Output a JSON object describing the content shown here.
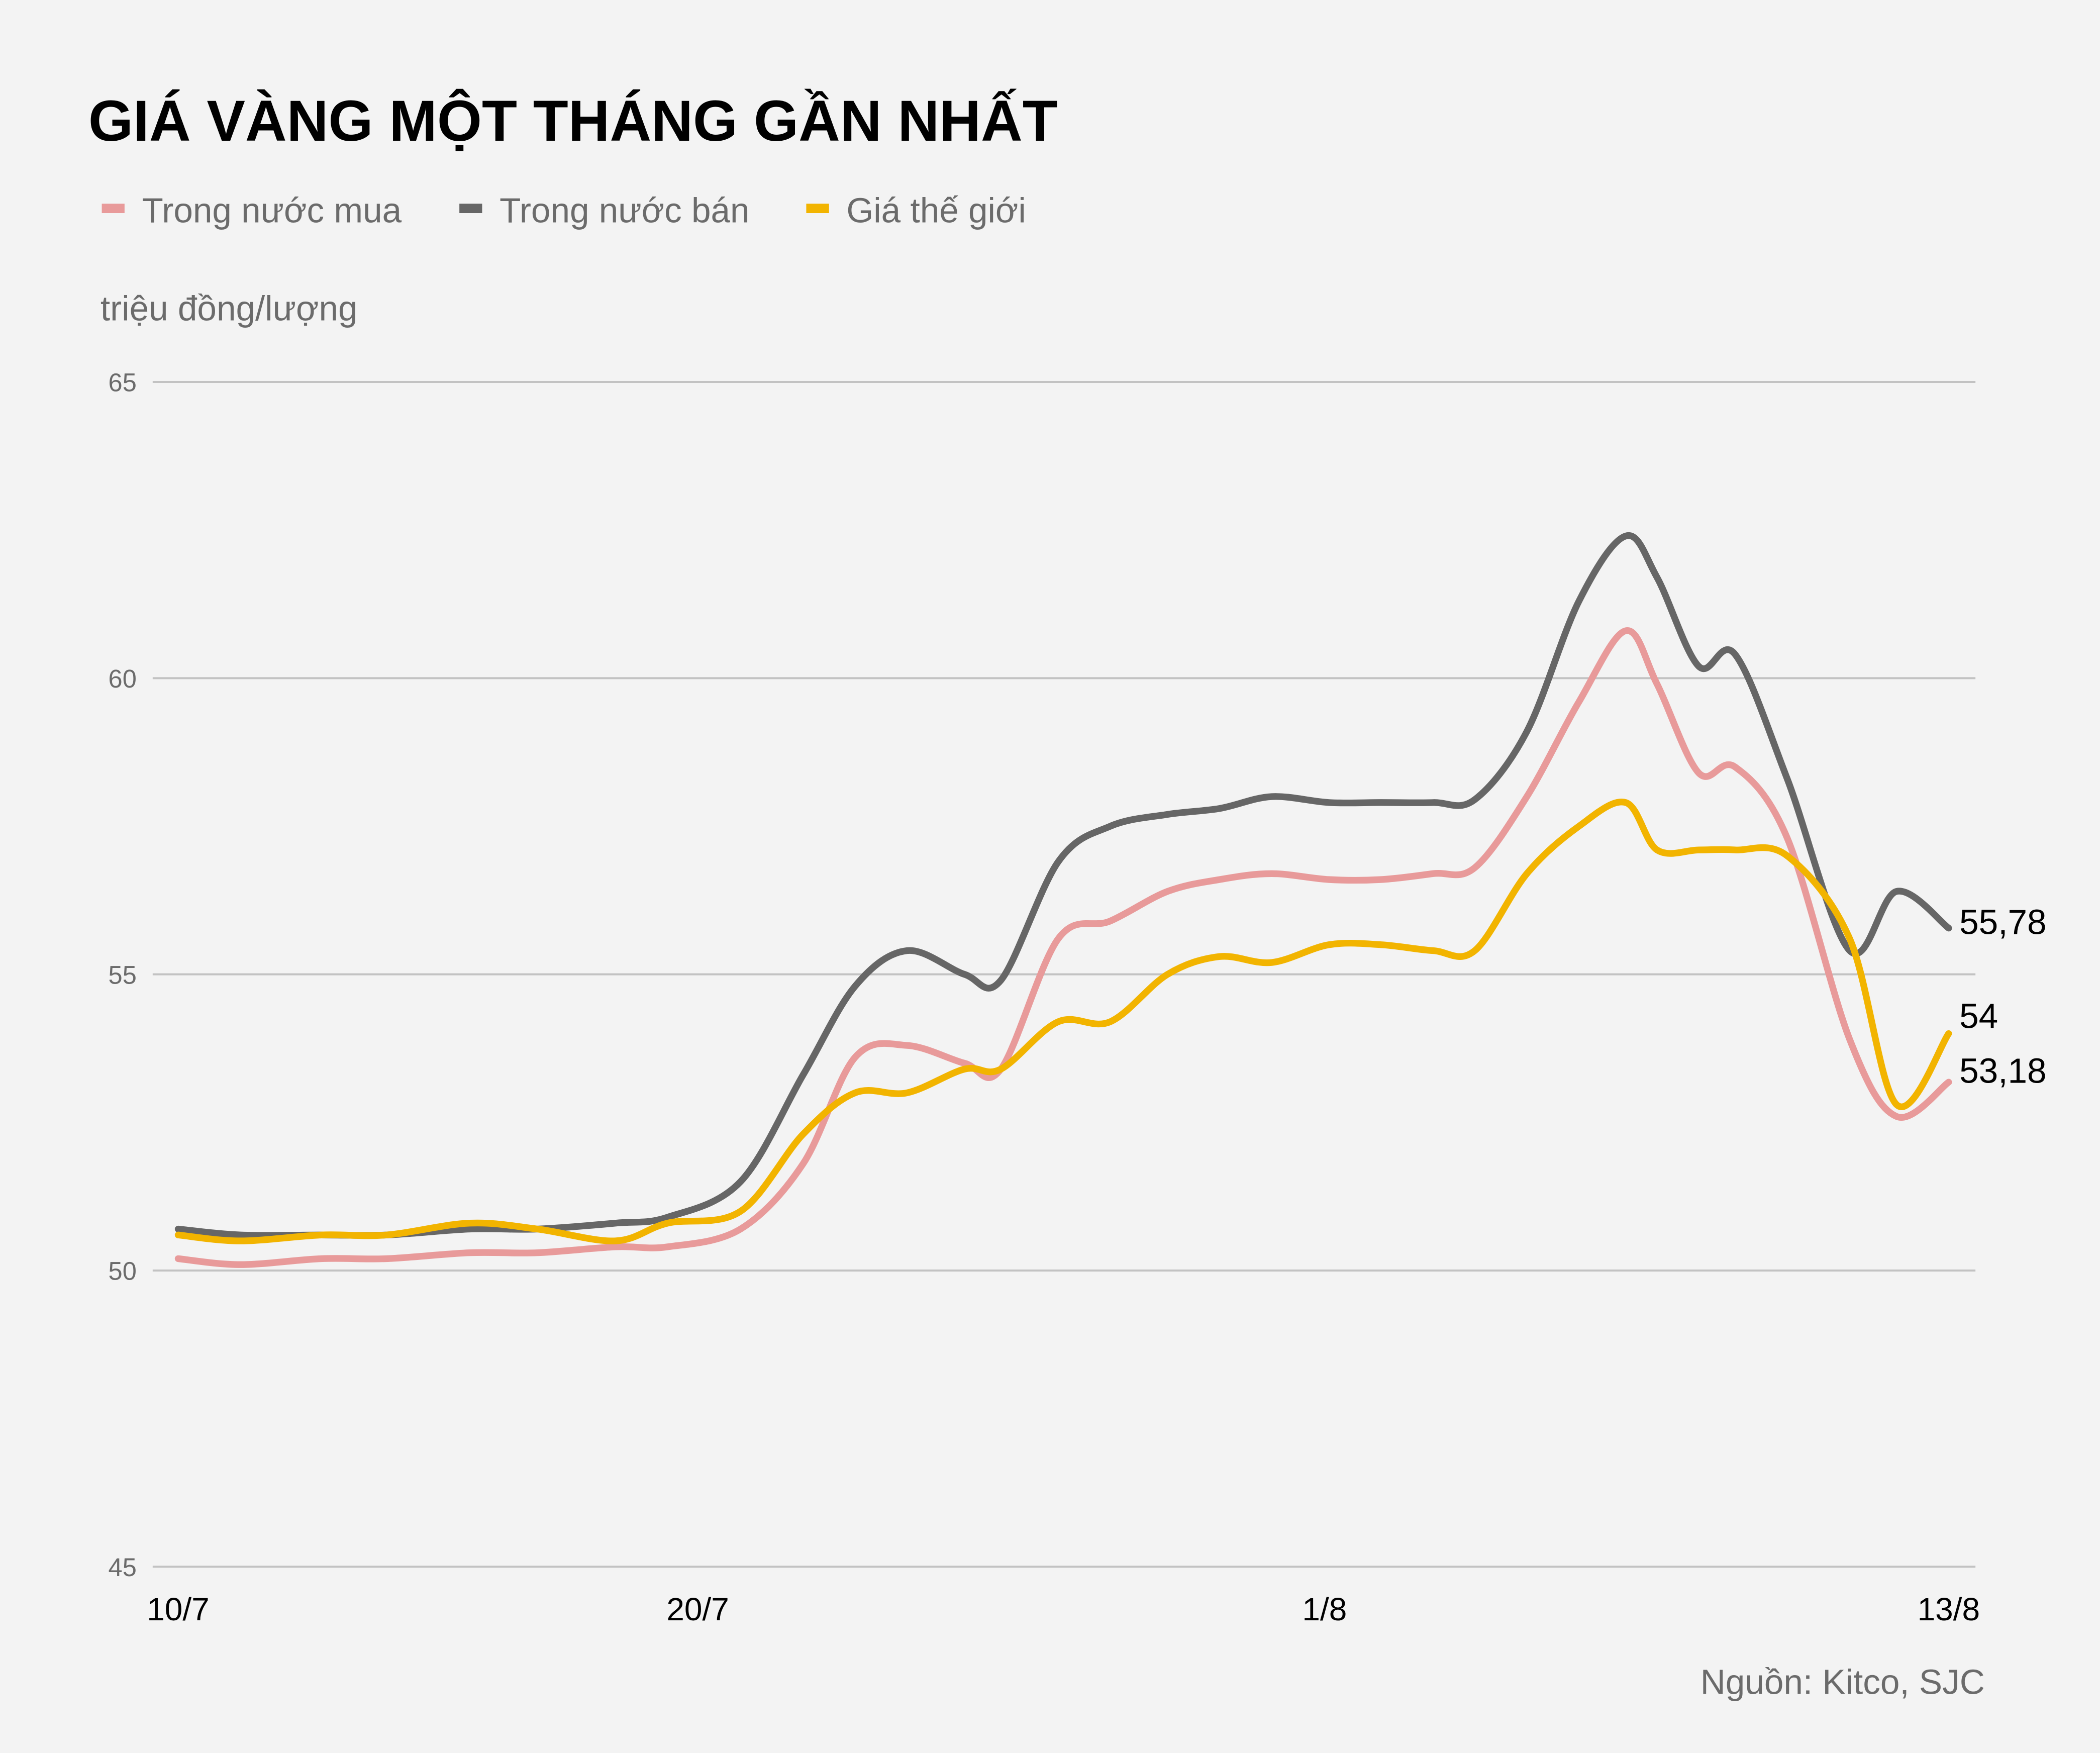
{
  "title": "GIÁ VÀNG MỘT THÁNG GẦN NHẤT",
  "legend": [
    {
      "label": "Trong nước mua",
      "color": "#e89a9a"
    },
    {
      "label": "Trong nước bán",
      "color": "#666666"
    },
    {
      "label": "Giá thế giới",
      "color": "#f2b400"
    }
  ],
  "unit_label": "triệu đồng/lượng",
  "source": "Nguồn: Kitco, SJC",
  "end_labels": {
    "ban": "55,78",
    "world": "54",
    "mua": "53,18"
  },
  "y_ticks": [
    "65",
    "60",
    "55",
    "50",
    "45"
  ],
  "x_ticks": [
    "10/7",
    "20/7",
    "1/8",
    "13/8"
  ],
  "chart_data": {
    "type": "line",
    "title": "GIÁ VÀNG MỘT THÁNG GẦN NHẤT",
    "xlabel": "",
    "ylabel": "triệu đồng/lượng",
    "ylim": [
      45,
      65
    ],
    "y_ticks": [
      45,
      50,
      55,
      60,
      65
    ],
    "x_ticks": [
      "10/7",
      "20/7",
      "1/8",
      "13/8"
    ],
    "x_range_days": [
      0,
      34
    ],
    "grid": "horizontal",
    "legend_position": "top-left",
    "source": "Nguồn: Kitco, SJC",
    "x_days": [
      0,
      1.2,
      2.75,
      4.0,
      5.6,
      6.9,
      8.4,
      9.4,
      10.8,
      12.0,
      13.0,
      14.0,
      15.1,
      15.8,
      16.9,
      17.9,
      19.0,
      20.0,
      21.0,
      22.1,
      23.1,
      24.1,
      24.9,
      25.9,
      26.9,
      27.8,
      28.4,
      29.2,
      29.9,
      30.9,
      32.1,
      33.0,
      34.0
    ],
    "series": [
      {
        "name": "Trong nước bán",
        "color": "#666666",
        "values": [
          50.7,
          50.6,
          50.6,
          50.6,
          50.7,
          50.7,
          50.8,
          50.9,
          51.5,
          53.3,
          54.8,
          55.4,
          55.0,
          54.9,
          56.9,
          57.5,
          57.7,
          57.8,
          58.0,
          57.9,
          57.9,
          57.9,
          57.95,
          59.1,
          61.3,
          62.4,
          61.7,
          60.2,
          60.4,
          58.3,
          55.4,
          56.4,
          55.78
        ]
      },
      {
        "name": "Trong nước mua",
        "color": "#e89a9a",
        "values": [
          50.2,
          50.1,
          50.2,
          50.2,
          50.3,
          50.3,
          50.4,
          50.4,
          50.7,
          51.8,
          53.6,
          53.8,
          53.5,
          53.4,
          55.6,
          55.9,
          56.4,
          56.6,
          56.7,
          56.6,
          56.6,
          56.7,
          56.8,
          58.0,
          59.6,
          60.8,
          59.9,
          58.4,
          58.5,
          57.3,
          53.9,
          52.6,
          53.18
        ]
      },
      {
        "name": "Giá thế giới",
        "color": "#f2b400",
        "values": [
          50.6,
          50.5,
          50.6,
          50.6,
          50.8,
          50.7,
          50.5,
          50.8,
          51.0,
          52.3,
          53.0,
          53.0,
          53.4,
          53.4,
          54.2,
          54.2,
          55.0,
          55.3,
          55.2,
          55.5,
          55.5,
          55.4,
          55.4,
          56.7,
          57.5,
          57.9,
          57.1,
          57.1,
          57.1,
          57.0,
          55.6,
          52.8,
          54.0
        ]
      }
    ],
    "end_values": {
      "Trong nước bán": 55.78,
      "Giá thế giới": 54,
      "Trong nước mua": 53.18
    }
  }
}
